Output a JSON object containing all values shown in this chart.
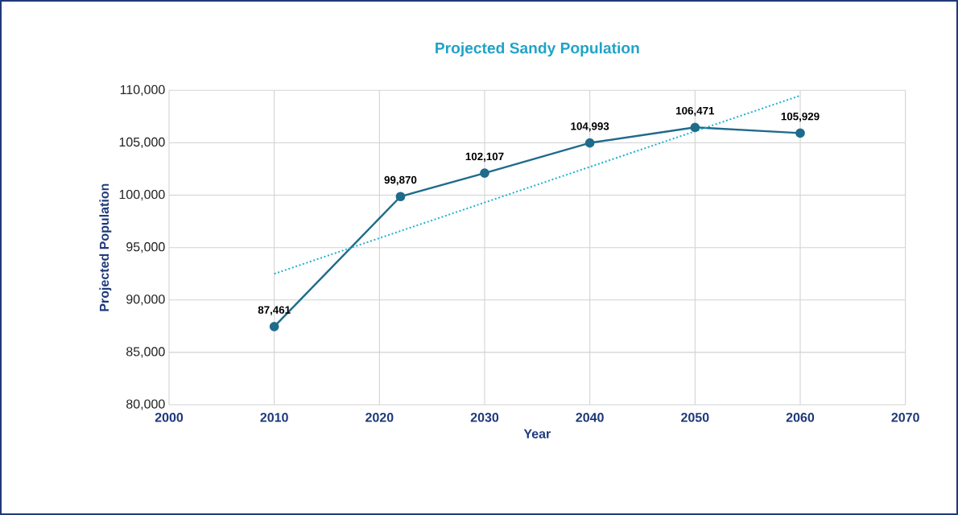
{
  "chart_data": {
    "type": "line",
    "title": "Projected Sandy Population",
    "xlabel": "Year",
    "ylabel": "Projected Population",
    "series": [
      {
        "color": "#1f6b8c",
        "marker": "circle",
        "line_style": "solid",
        "x": [
          2010,
          2022,
          2030,
          2040,
          2050,
          2060
        ],
        "values": [
          87461,
          99870,
          102107,
          104993,
          106471,
          105929
        ],
        "value_labels": [
          "87,461",
          "99,870",
          "102,107",
          "104,993",
          "106,471",
          "105,929"
        ]
      },
      {
        "color": "#1fb0d0",
        "marker": "none",
        "line_style": "dotted",
        "x": [
          2010,
          2060
        ],
        "values": [
          92500,
          109500
        ]
      }
    ],
    "xlim": [
      2000,
      2070
    ],
    "xticks": [
      2000,
      2010,
      2020,
      2030,
      2040,
      2050,
      2060,
      2070
    ],
    "ylim": [
      80000,
      110000
    ],
    "yticks": [
      {
        "value": 80000,
        "label": "80,000"
      },
      {
        "value": 85000,
        "label": "85,000"
      },
      {
        "value": 90000,
        "label": "90,000"
      },
      {
        "value": 95000,
        "label": "95,000"
      },
      {
        "value": 100000,
        "label": "100,000"
      },
      {
        "value": 105000,
        "label": "105,000"
      },
      {
        "value": 110000,
        "label": "110,000"
      }
    ],
    "grid": true
  }
}
